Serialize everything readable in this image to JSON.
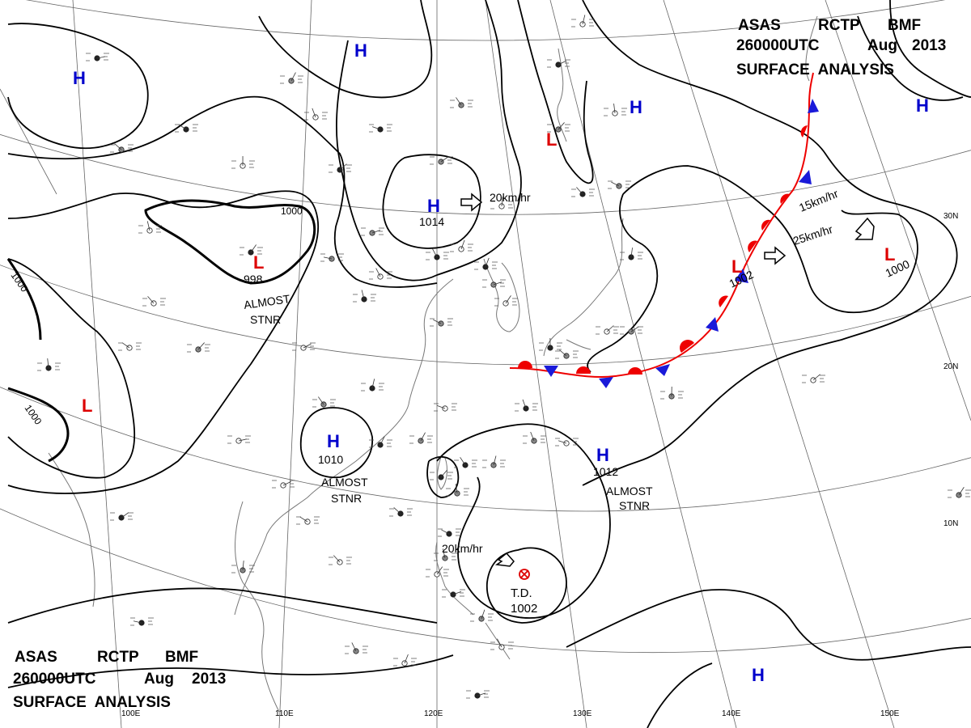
{
  "header_top": {
    "line1": [
      "ASAS",
      "RCTP",
      "BMF"
    ],
    "line2": [
      "260000UTC",
      "Aug",
      "2013"
    ],
    "line3": "SURFACE  ANALYSIS"
  },
  "header_bottom": {
    "line1": [
      "ASAS",
      "RCTP",
      "BMF"
    ],
    "line2": [
      "260000UTC",
      "Aug",
      "2013"
    ],
    "line3": "SURFACE  ANALYSIS"
  },
  "colors": {
    "high": "#0000cc",
    "low": "#dd0000",
    "isobar": "#000000",
    "grid": "#666666"
  },
  "pressure_systems": [
    {
      "type": "H",
      "label": "H",
      "value": ""
    },
    {
      "type": "H",
      "label": "H",
      "value": ""
    },
    {
      "type": "H",
      "label": "H",
      "value": "1014"
    },
    {
      "type": "H",
      "label": "H",
      "value": ""
    },
    {
      "type": "H",
      "label": "H",
      "value": ""
    },
    {
      "type": "H",
      "label": "H",
      "value": "1010"
    },
    {
      "type": "H",
      "label": "H",
      "value": "1012"
    },
    {
      "type": "H",
      "label": "H",
      "value": ""
    },
    {
      "type": "L",
      "label": "L",
      "value": "998"
    },
    {
      "type": "L",
      "label": "L",
      "value": ""
    },
    {
      "type": "L",
      "label": "L",
      "value": ""
    },
    {
      "type": "L",
      "label": "L",
      "value": "1002"
    },
    {
      "type": "L",
      "label": "L",
      "value": "1000"
    },
    {
      "type": "TD",
      "label": "T.D.",
      "value": "1002"
    }
  ],
  "motions": [
    {
      "text": "20km/hr"
    },
    {
      "text": "15km/hr"
    },
    {
      "text": "25km/hr"
    },
    {
      "text": "20km/hr"
    }
  ],
  "annotations": [
    {
      "line1": "ALMOST",
      "line2": "STNR"
    },
    {
      "line1": "ALMOST",
      "line2": "STNR"
    },
    {
      "line1": "ALMOST",
      "line2": "STNR"
    }
  ],
  "isobar_labels": [
    "1000",
    "1000",
    "1000"
  ],
  "latitude_labels": [
    "30N",
    "20N",
    "10N"
  ],
  "longitude_labels": [
    "100E",
    "110E",
    "120E",
    "130E",
    "140E",
    "150E"
  ]
}
